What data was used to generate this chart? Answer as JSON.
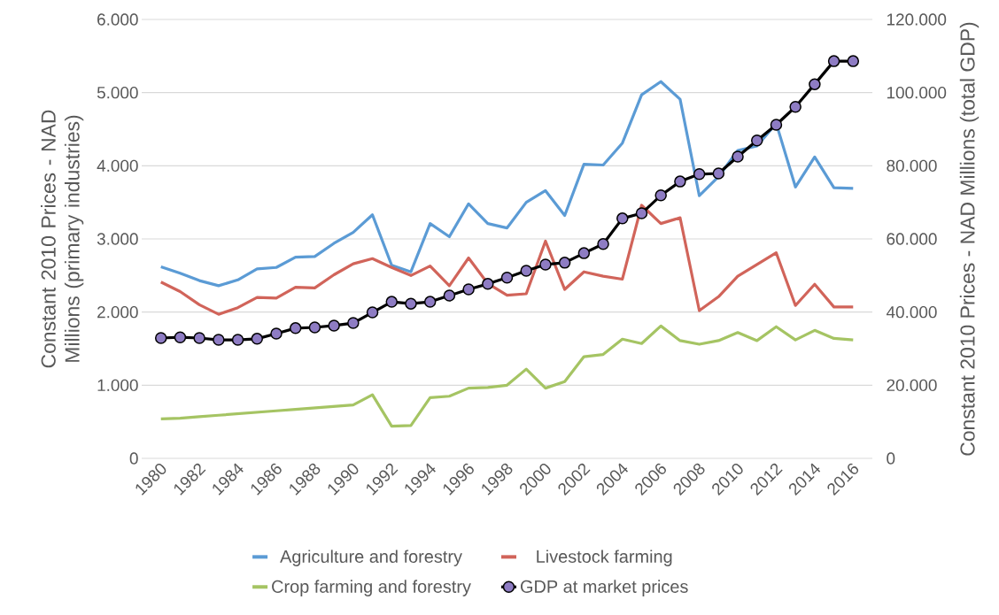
{
  "chart_data": {
    "type": "line",
    "ylabel": "Constant 2010 Prices - NAD Millions (primary industries)",
    "y2label": "Constant 2010 Prices - NAD Millions (total GDP)",
    "x": [
      1980,
      1981,
      1982,
      1983,
      1984,
      1985,
      1986,
      1987,
      1988,
      1989,
      1990,
      1991,
      1992,
      1993,
      1994,
      1995,
      1996,
      1997,
      1998,
      1999,
      2000,
      2001,
      2002,
      2003,
      2004,
      2005,
      2006,
      2007,
      2008,
      2009,
      2010,
      2011,
      2012,
      2013,
      2014,
      2015,
      2016
    ],
    "series": [
      {
        "name": "Agriculture and forestry",
        "color": "#5b9bd5",
        "values": [
          2620,
          2530,
          2430,
          2360,
          2440,
          2590,
          2610,
          2750,
          2760,
          2940,
          3090,
          3330,
          2640,
          2550,
          3210,
          3030,
          3480,
          3210,
          3150,
          3500,
          3660,
          3320,
          4020,
          4010,
          4310,
          4970,
          5150,
          4910,
          3590,
          3850,
          4210,
          4270,
          4580,
          3710,
          4120,
          3700,
          3690
        ]
      },
      {
        "name": "Livestock farming",
        "color": "#d1645a",
        "values": [
          2410,
          2280,
          2100,
          1970,
          2060,
          2200,
          2190,
          2340,
          2330,
          2510,
          2660,
          2730,
          2610,
          2500,
          2630,
          2360,
          2740,
          2390,
          2230,
          2250,
          2970,
          2310,
          2550,
          2490,
          2450,
          3460,
          3210,
          3290,
          2020,
          2210,
          2490,
          2650,
          2810,
          2090,
          2380,
          2070,
          2070
        ]
      },
      {
        "name": "Crop farming and forestry",
        "color": "#a5c463",
        "values": [
          540,
          550,
          570,
          590,
          610,
          630,
          650,
          670,
          690,
          710,
          730,
          870,
          440,
          450,
          830,
          850,
          960,
          970,
          1000,
          1220,
          960,
          1050,
          1390,
          1420,
          1630,
          1570,
          1810,
          1610,
          1560,
          1610,
          1720,
          1610,
          1800,
          1620,
          1750,
          1640,
          1620
        ]
      },
      {
        "name": "GDP at market prices",
        "color": "#000000",
        "axis": "y2",
        "marker": "circle",
        "values": [
          32900,
          33100,
          32900,
          32400,
          32400,
          32700,
          34100,
          35600,
          35800,
          36300,
          37000,
          39900,
          42800,
          42300,
          42800,
          44500,
          46200,
          47700,
          49400,
          51300,
          53000,
          53500,
          56100,
          58600,
          65600,
          67000,
          71900,
          75700,
          77700,
          77900,
          82500,
          86900,
          91200,
          96100,
          102300,
          108600,
          108600
        ]
      }
    ],
    "xlim": [
      1979,
      2017
    ],
    "xticks": [
      1980,
      1982,
      1984,
      1986,
      1988,
      1990,
      1992,
      1994,
      1996,
      1998,
      2000,
      2002,
      2004,
      2006,
      2008,
      2010,
      2012,
      2014,
      2016
    ],
    "ylim": [
      0,
      6000
    ],
    "yticks": [
      {
        "value": 0,
        "label": "0"
      },
      {
        "value": 1000,
        "label": "1.000"
      },
      {
        "value": 2000,
        "label": "2.000"
      },
      {
        "value": 3000,
        "label": "3.000"
      },
      {
        "value": 4000,
        "label": "4.000"
      },
      {
        "value": 5000,
        "label": "5.000"
      },
      {
        "value": 6000,
        "label": "6.000"
      }
    ],
    "y2lim": [
      0,
      120000
    ],
    "y2ticks": [
      {
        "value": 0,
        "label": "0"
      },
      {
        "value": 20000,
        "label": "20.000"
      },
      {
        "value": 40000,
        "label": "40.000"
      },
      {
        "value": 60000,
        "label": "60.000"
      },
      {
        "value": 80000,
        "label": "80.000"
      },
      {
        "value": 100000,
        "label": "100.000"
      },
      {
        "value": 120000,
        "label": "120.000"
      }
    ],
    "grid": "y",
    "legend": "bottom"
  }
}
